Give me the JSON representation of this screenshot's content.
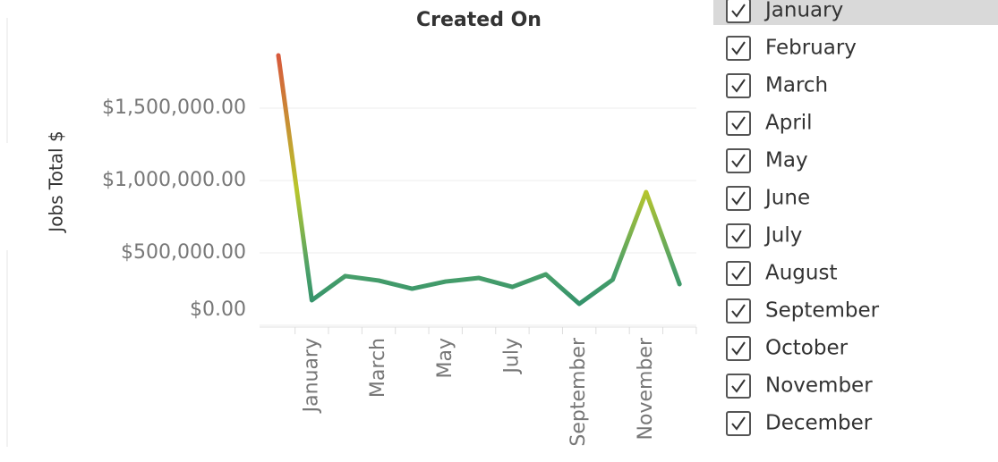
{
  "chart_data": {
    "type": "line",
    "title": "Created On",
    "y_label": "Jobs Total $",
    "categories": [
      null,
      "January",
      null,
      "March",
      null,
      "May",
      null,
      "July",
      null,
      "September",
      null,
      "November",
      null
    ],
    "values": [
      1864000,
      173000,
      340000,
      309000,
      253000,
      302000,
      327000,
      265000,
      352000,
      148000,
      315000,
      920000,
      284000
    ],
    "color_scale": [
      "#2f8f6b",
      "#4aa06a",
      "#b8c62c",
      "#d8583c"
    ],
    "ylim": [
      0,
      2000000
    ],
    "yticks": [
      {
        "value": 0,
        "label": "$0.00"
      },
      {
        "value": 500000,
        "label": "$500,000.00"
      },
      {
        "value": 1000000,
        "label": "$1,000,000.00"
      },
      {
        "value": 1500000,
        "label": "$1,500,000.00"
      }
    ],
    "grid": true
  },
  "filter": {
    "items": [
      "January",
      "February",
      "March",
      "April",
      "May",
      "June",
      "July",
      "August",
      "September",
      "October",
      "November",
      "December"
    ],
    "highlighted": 0
  }
}
